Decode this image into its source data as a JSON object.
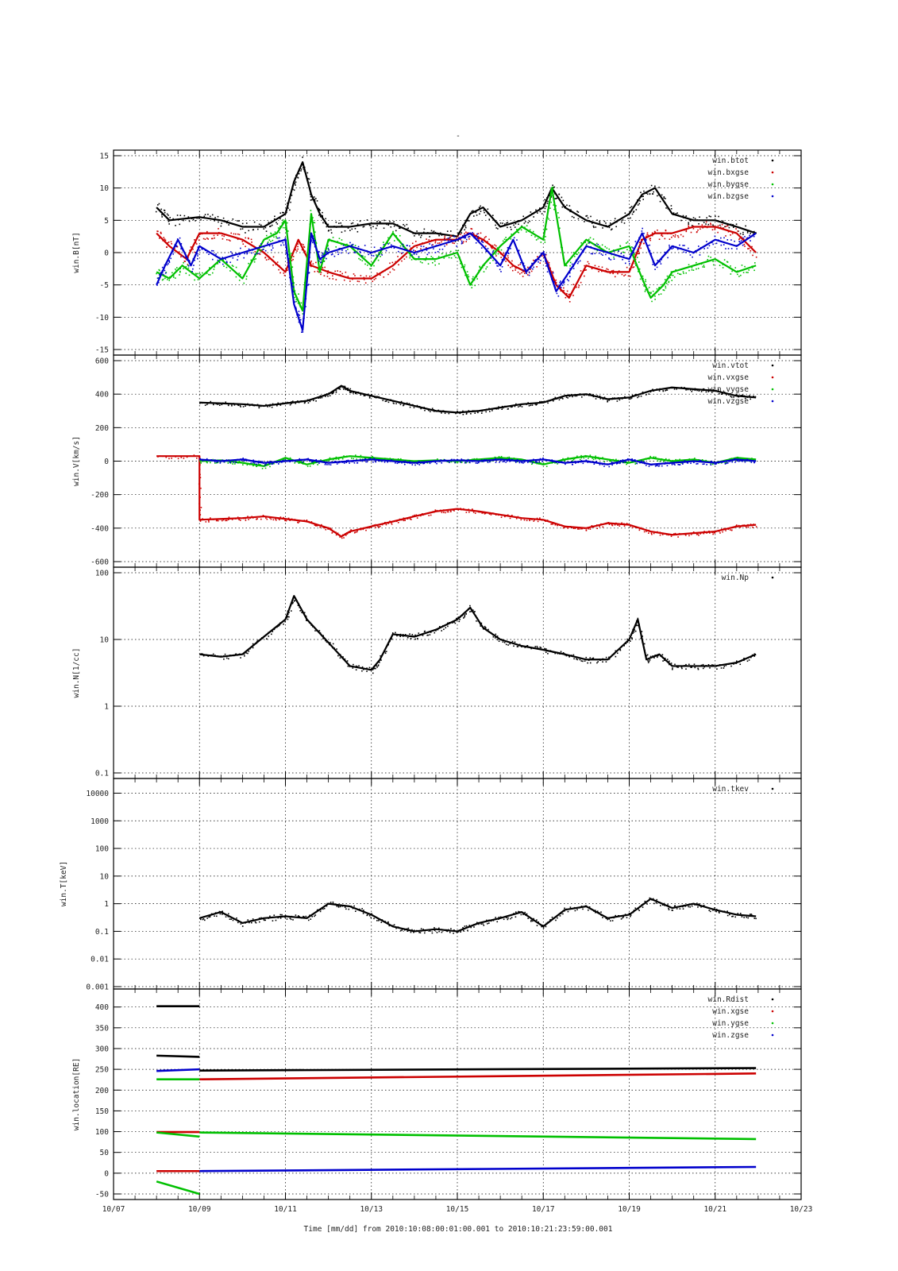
{
  "figure": {
    "title": "-",
    "time_caption": "Time [mm/dd]  from 2010:10:08:00:01:00.001  to  2010:10:21:23:59:00.001"
  },
  "colors": {
    "black": "#000000",
    "red": "#cc0000",
    "green": "#00c000",
    "blue": "#0000cc",
    "grid": "#000000"
  },
  "x_axis": {
    "start": "10/07",
    "end": "10/23",
    "ticks": [
      "10/07",
      "10/09",
      "10/11",
      "10/13",
      "10/15",
      "10/17",
      "10/19",
      "10/21",
      "10/23"
    ],
    "tick_days": [
      7,
      9,
      11,
      13,
      15,
      17,
      19,
      21,
      23
    ]
  },
  "chart_data": [
    {
      "type": "scatter",
      "ylabel": "win.B[nT]",
      "ylim": [
        -15,
        15
      ],
      "yticks": [
        15,
        10,
        5,
        0,
        -5,
        -10,
        -15
      ],
      "grid": true,
      "legend_placement": "top-right",
      "series": [
        {
          "name": "win.btot",
          "color": "black",
          "x": [
            8.0,
            8.3,
            9.0,
            9.5,
            10.0,
            10.5,
            11.0,
            11.2,
            11.4,
            11.6,
            11.8,
            12.0,
            12.5,
            13.0,
            13.5,
            14.0,
            14.5,
            15.0,
            15.3,
            15.6,
            16.0,
            16.5,
            17.0,
            17.2,
            17.5,
            18.0,
            18.5,
            19.0,
            19.3,
            19.6,
            20.0,
            20.5,
            21.0,
            21.5,
            21.95
          ],
          "y": [
            7,
            5,
            5.5,
            5,
            4,
            4,
            6,
            11,
            14,
            9,
            6,
            4,
            4,
            4.5,
            4.5,
            3,
            3,
            2.5,
            6,
            7,
            4,
            5,
            7,
            10,
            7,
            5,
            4,
            6,
            9,
            10,
            6,
            5,
            5,
            4,
            3
          ]
        },
        {
          "name": "win.bxgse",
          "color": "red",
          "x": [
            8.0,
            8.3,
            8.7,
            9.0,
            9.5,
            10.0,
            10.5,
            11.0,
            11.3,
            11.6,
            12.0,
            12.5,
            13.0,
            13.5,
            14.0,
            14.5,
            15.0,
            15.3,
            15.6,
            16.0,
            16.3,
            16.6,
            17.0,
            17.3,
            17.6,
            18.0,
            18.5,
            19.0,
            19.3,
            19.6,
            20.0,
            20.5,
            21.0,
            21.5,
            21.95
          ],
          "y": [
            3,
            1,
            -1,
            3,
            3,
            2,
            0,
            -3,
            2,
            -2,
            -3,
            -4,
            -4,
            -2,
            1,
            2,
            2,
            3,
            2,
            0,
            -2,
            -3,
            0,
            -5,
            -7,
            -2,
            -3,
            -3,
            2,
            3,
            3,
            4,
            4,
            3,
            0
          ]
        },
        {
          "name": "win.bygse",
          "color": "green",
          "x": [
            8.0,
            8.3,
            8.6,
            9.0,
            9.5,
            10.0,
            10.5,
            10.8,
            11.0,
            11.2,
            11.4,
            11.6,
            11.8,
            12.0,
            12.5,
            13.0,
            13.5,
            14.0,
            14.5,
            15.0,
            15.3,
            15.6,
            16.0,
            16.5,
            17.0,
            17.2,
            17.5,
            18.0,
            18.5,
            19.0,
            19.3,
            19.5,
            19.8,
            20.0,
            20.5,
            21.0,
            21.5,
            21.95
          ],
          "y": [
            -3,
            -4,
            -2,
            -4,
            -1,
            -4,
            2,
            3,
            5,
            -6,
            -9,
            6,
            -3,
            2,
            1,
            -2,
            3,
            -1,
            -1,
            0,
            -5,
            -2,
            1,
            4,
            2,
            10,
            -2,
            2,
            0,
            1,
            -4,
            -7,
            -5,
            -3,
            -2,
            -1,
            -3,
            -2
          ]
        },
        {
          "name": "win.bzgse",
          "color": "blue",
          "x": [
            8.0,
            8.2,
            8.5,
            8.8,
            9.0,
            9.5,
            10.0,
            10.5,
            11.0,
            11.2,
            11.4,
            11.6,
            11.8,
            12.0,
            12.5,
            13.0,
            13.5,
            14.0,
            14.5,
            15.0,
            15.3,
            15.6,
            16.0,
            16.3,
            16.6,
            17.0,
            17.3,
            17.6,
            18.0,
            18.5,
            19.0,
            19.3,
            19.6,
            20.0,
            20.5,
            21.0,
            21.5,
            21.95
          ],
          "y": [
            -5,
            -2,
            2,
            -2,
            1,
            -1,
            0,
            1,
            2,
            -8,
            -12,
            3,
            -1,
            0,
            1,
            0,
            1,
            0,
            1,
            2,
            3,
            1,
            -2,
            2,
            -3,
            0,
            -6,
            -3,
            1,
            0,
            -1,
            3,
            -2,
            1,
            0,
            2,
            1,
            3
          ]
        }
      ]
    },
    {
      "type": "scatter",
      "ylabel": "win.V[km/s]",
      "ylim": [
        -600,
        600
      ],
      "yticks": [
        600,
        400,
        200,
        0,
        -200,
        -400,
        -600
      ],
      "grid": true,
      "legend_placement": "top-right",
      "series": [
        {
          "name": "win.vtot",
          "color": "black",
          "x": [
            9.0,
            9.5,
            10.0,
            10.5,
            11.0,
            11.5,
            12.0,
            12.3,
            12.5,
            13.0,
            13.5,
            14.0,
            14.5,
            15.0,
            15.5,
            16.0,
            16.5,
            17.0,
            17.5,
            18.0,
            18.5,
            19.0,
            19.5,
            20.0,
            20.5,
            21.0,
            21.5,
            21.95
          ],
          "y": [
            350,
            345,
            340,
            330,
            345,
            360,
            400,
            450,
            420,
            390,
            360,
            330,
            300,
            290,
            300,
            320,
            340,
            350,
            390,
            400,
            370,
            380,
            420,
            440,
            430,
            420,
            390,
            380
          ]
        },
        {
          "name": "win.vxgse",
          "color": "red",
          "x": [
            8.0,
            9.0,
            9.0,
            9.5,
            10.0,
            10.5,
            11.0,
            11.5,
            12.0,
            12.3,
            12.5,
            13.0,
            13.5,
            14.0,
            14.5,
            15.0,
            15.5,
            16.0,
            16.5,
            17.0,
            17.5,
            18.0,
            18.5,
            19.0,
            19.5,
            20.0,
            20.5,
            21.0,
            21.5,
            21.95
          ],
          "y": [
            30,
            30,
            -350,
            -345,
            -340,
            -330,
            -345,
            -360,
            -400,
            -450,
            -420,
            -390,
            -360,
            -330,
            -300,
            -285,
            -300,
            -320,
            -340,
            -350,
            -390,
            -400,
            -370,
            -380,
            -420,
            -440,
            -430,
            -420,
            -390,
            -380
          ]
        },
        {
          "name": "win.vygse",
          "color": "green",
          "x": [
            9.0,
            9.5,
            10.0,
            10.5,
            11.0,
            11.5,
            12.0,
            12.5,
            13.0,
            13.5,
            14.0,
            14.5,
            15.0,
            15.5,
            16.0,
            16.5,
            17.0,
            17.5,
            18.0,
            18.5,
            19.0,
            19.5,
            20.0,
            20.5,
            21.0,
            21.5,
            21.95
          ],
          "y": [
            0,
            5,
            -10,
            -30,
            20,
            -20,
            10,
            30,
            20,
            10,
            0,
            5,
            0,
            10,
            20,
            10,
            -20,
            10,
            30,
            10,
            -10,
            20,
            0,
            10,
            -10,
            20,
            10
          ]
        },
        {
          "name": "win.vzgse",
          "color": "blue",
          "x": [
            9.0,
            9.5,
            10.0,
            10.5,
            11.0,
            11.5,
            12.0,
            12.5,
            13.0,
            13.5,
            14.0,
            14.5,
            15.0,
            15.5,
            16.0,
            16.5,
            17.0,
            17.5,
            18.0,
            18.5,
            19.0,
            19.5,
            20.0,
            20.5,
            21.0,
            21.5,
            21.95
          ],
          "y": [
            10,
            0,
            10,
            -10,
            0,
            10,
            -10,
            0,
            10,
            0,
            -10,
            0,
            5,
            0,
            10,
            0,
            10,
            -10,
            0,
            -20,
            10,
            -20,
            -10,
            0,
            -10,
            10,
            0
          ]
        }
      ]
    },
    {
      "type": "scatter",
      "ylabel": "win.N[1/cc]",
      "yscale": "log",
      "ylim": [
        0.1,
        100
      ],
      "yticks": [
        100,
        10,
        1,
        0.1
      ],
      "grid": true,
      "legend_placement": "top-right",
      "series": [
        {
          "name": "win.Np",
          "color": "black",
          "x": [
            9.0,
            9.5,
            10.0,
            10.5,
            11.0,
            11.2,
            11.5,
            12.0,
            12.5,
            13.0,
            13.2,
            13.5,
            14.0,
            14.5,
            15.0,
            15.3,
            15.6,
            16.0,
            16.5,
            17.0,
            17.5,
            18.0,
            18.5,
            19.0,
            19.2,
            19.4,
            19.7,
            20.0,
            20.5,
            21.0,
            21.5,
            21.95
          ],
          "y": [
            6,
            5.5,
            6,
            11,
            20,
            45,
            20,
            9,
            4,
            3.5,
            5,
            12,
            11,
            14,
            20,
            30,
            15,
            10,
            8,
            7,
            6,
            5,
            5,
            10,
            20,
            5,
            6,
            4,
            4,
            4,
            4.5,
            6
          ]
        }
      ]
    },
    {
      "type": "scatter",
      "ylabel": "win.T[keV]",
      "yscale": "log",
      "ylim": [
        0.001,
        20000
      ],
      "yticks": [
        10000,
        1000,
        100,
        10,
        1,
        0.1,
        0.01,
        0.001
      ],
      "grid": true,
      "legend_placement": "top-right",
      "series": [
        {
          "name": "win.tkev",
          "color": "black",
          "x": [
            9.0,
            9.5,
            10.0,
            10.5,
            11.0,
            11.5,
            12.0,
            12.5,
            13.0,
            13.5,
            14.0,
            14.5,
            15.0,
            15.5,
            16.0,
            16.5,
            17.0,
            17.5,
            18.0,
            18.5,
            19.0,
            19.5,
            20.0,
            20.5,
            21.0,
            21.5,
            21.95
          ],
          "y": [
            0.3,
            0.5,
            0.2,
            0.3,
            0.35,
            0.3,
            1,
            0.8,
            0.4,
            0.15,
            0.1,
            0.12,
            0.1,
            0.2,
            0.3,
            0.5,
            0.15,
            0.6,
            0.8,
            0.3,
            0.4,
            1.5,
            0.7,
            1,
            0.6,
            0.4,
            0.35
          ]
        }
      ]
    },
    {
      "type": "line",
      "ylabel": "win.location[RE]",
      "ylim": [
        -50,
        430
      ],
      "yticks": [
        400,
        350,
        300,
        250,
        200,
        150,
        100,
        50,
        0,
        -50
      ],
      "grid": true,
      "legend_placement": "top-right",
      "series": [
        {
          "name": "win.Rdist",
          "color": "black",
          "segments": [
            {
              "x": [
                8.0,
                9.0
              ],
              "y": [
                402,
                402
              ]
            },
            {
              "x": [
                8.0,
                9.0
              ],
              "y": [
                283,
                280
              ]
            },
            {
              "x": [
                9.0,
                21.95
              ],
              "y": [
                247,
                253
              ]
            }
          ]
        },
        {
          "name": "win.xgse",
          "color": "red",
          "segments": [
            {
              "x": [
                8.0,
                9.0
              ],
              "y": [
                99,
                99
              ]
            },
            {
              "x": [
                8.0,
                9.0
              ],
              "y": [
                5,
                5
              ]
            },
            {
              "x": [
                9.0,
                21.95
              ],
              "y": [
                226,
                240
              ]
            }
          ]
        },
        {
          "name": "win.ygse",
          "color": "green",
          "segments": [
            {
              "x": [
                8.0,
                9.0
              ],
              "y": [
                226,
                226
              ]
            },
            {
              "x": [
                8.0,
                9.0
              ],
              "y": [
                98,
                88
              ]
            },
            {
              "x": [
                8.0,
                9.0
              ],
              "y": [
                -20,
                -50
              ]
            },
            {
              "x": [
                9.0,
                21.95
              ],
              "y": [
                98,
                82
              ]
            }
          ]
        },
        {
          "name": "win.zgse",
          "color": "blue",
          "segments": [
            {
              "x": [
                8.0,
                9.0
              ],
              "y": [
                246,
                250
              ]
            },
            {
              "x": [
                9.0,
                21.95
              ],
              "y": [
                5,
                15
              ]
            }
          ]
        }
      ]
    }
  ]
}
